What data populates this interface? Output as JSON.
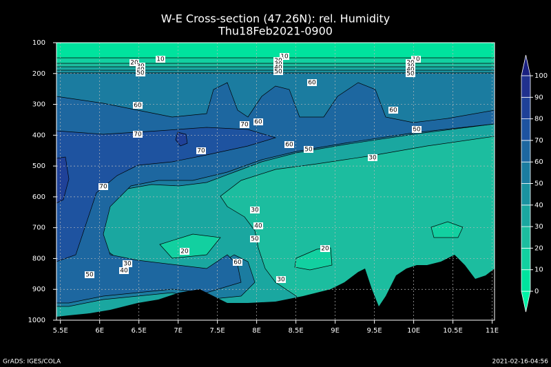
{
  "chart_data": {
    "type": "contour",
    "title": "W-E Cross-section (47.26N): rel. Humidity",
    "subtitle": "Thu18Feb2021-0900",
    "footer_left": "GrADS: IGES/COLA",
    "footer_right": "2021-02-16-04:56",
    "xlim": [
      5.45,
      11.03
    ],
    "xticks": [
      {
        "value": 5.5,
        "label": "5.5E"
      },
      {
        "value": 6,
        "label": "6E"
      },
      {
        "value": 6.5,
        "label": "6.5E"
      },
      {
        "value": 7,
        "label": "7E"
      },
      {
        "value": 7.5,
        "label": "7.5E"
      },
      {
        "value": 8,
        "label": "8E"
      },
      {
        "value": 8.5,
        "label": "8.5E"
      },
      {
        "value": 9,
        "label": "9E"
      },
      {
        "value": 9.5,
        "label": "9.5E"
      },
      {
        "value": 10,
        "label": "10E"
      },
      {
        "value": 10.5,
        "label": "10.5E"
      },
      {
        "value": 11,
        "label": "11E"
      }
    ],
    "ylim": [
      1000,
      100
    ],
    "yticks": [
      100,
      200,
      300,
      400,
      500,
      600,
      700,
      800,
      900,
      1000
    ],
    "grid": true,
    "colorbar": {
      "ticks": [
        0,
        10,
        20,
        30,
        40,
        50,
        60,
        70,
        80,
        90,
        100
      ],
      "colors": [
        "#00f2a6",
        "#00e39e",
        "#12d0a0",
        "#1cbd9f",
        "#1aa7a0",
        "#1a92a0",
        "#1b7ca0",
        "#1d67a0",
        "#1e53a0",
        "#1f4198",
        "#20318e",
        "#1a2080"
      ]
    },
    "contour_labels": [
      10,
      20,
      30,
      40,
      50,
      10,
      20,
      30,
      40,
      50,
      10,
      20,
      30,
      40,
      50,
      60,
      60,
      60,
      70,
      60,
      70,
      60,
      60,
      50,
      70,
      30,
      70,
      30,
      40,
      50,
      20,
      20,
      60,
      30,
      40,
      50,
      30
    ]
  }
}
